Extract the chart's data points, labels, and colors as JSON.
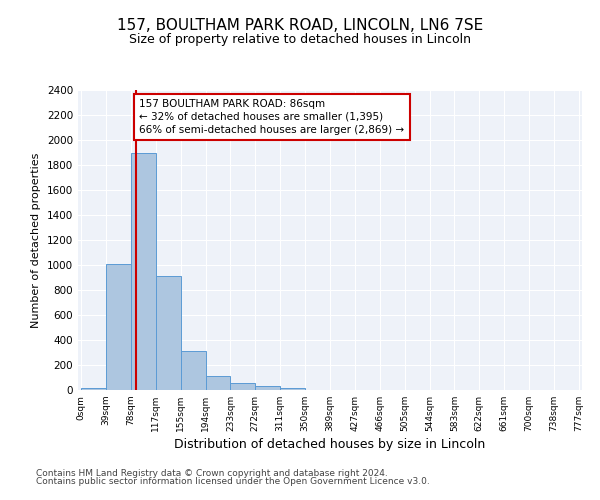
{
  "title": "157, BOULTHAM PARK ROAD, LINCOLN, LN6 7SE",
  "subtitle": "Size of property relative to detached houses in Lincoln",
  "xlabel": "Distribution of detached houses by size in Lincoln",
  "ylabel": "Number of detached properties",
  "bar_values": [
    20,
    1010,
    1900,
    910,
    315,
    110,
    55,
    35,
    20,
    0,
    0,
    0,
    0,
    0,
    0,
    0,
    0,
    0,
    0,
    0
  ],
  "bin_labels": [
    "0sqm",
    "39sqm",
    "78sqm",
    "117sqm",
    "155sqm",
    "194sqm",
    "233sqm",
    "272sqm",
    "311sqm",
    "350sqm",
    "389sqm",
    "427sqm",
    "466sqm",
    "505sqm",
    "544sqm",
    "583sqm",
    "622sqm",
    "661sqm",
    "700sqm",
    "738sqm",
    "777sqm"
  ],
  "bar_color": "#adc6e0",
  "bar_edge_color": "#5b9bd5",
  "property_line_x": 86,
  "property_line_color": "#cc0000",
  "annotation_text": "157 BOULTHAM PARK ROAD: 86sqm\n← 32% of detached houses are smaller (1,395)\n66% of semi-detached houses are larger (2,869) →",
  "annotation_box_color": "#cc0000",
  "ylim": [
    0,
    2400
  ],
  "yticks": [
    0,
    200,
    400,
    600,
    800,
    1000,
    1200,
    1400,
    1600,
    1800,
    2000,
    2200,
    2400
  ],
  "footer_line1": "Contains HM Land Registry data © Crown copyright and database right 2024.",
  "footer_line2": "Contains public sector information licensed under the Open Government Licence v3.0.",
  "background_color": "#eef2f9",
  "title_fontsize": 11,
  "subtitle_fontsize": 9,
  "annotation_fontsize": 7.5,
  "xlabel_fontsize": 9,
  "ylabel_fontsize": 8,
  "footer_fontsize": 6.5,
  "bin_width": 39,
  "n_bins": 20
}
